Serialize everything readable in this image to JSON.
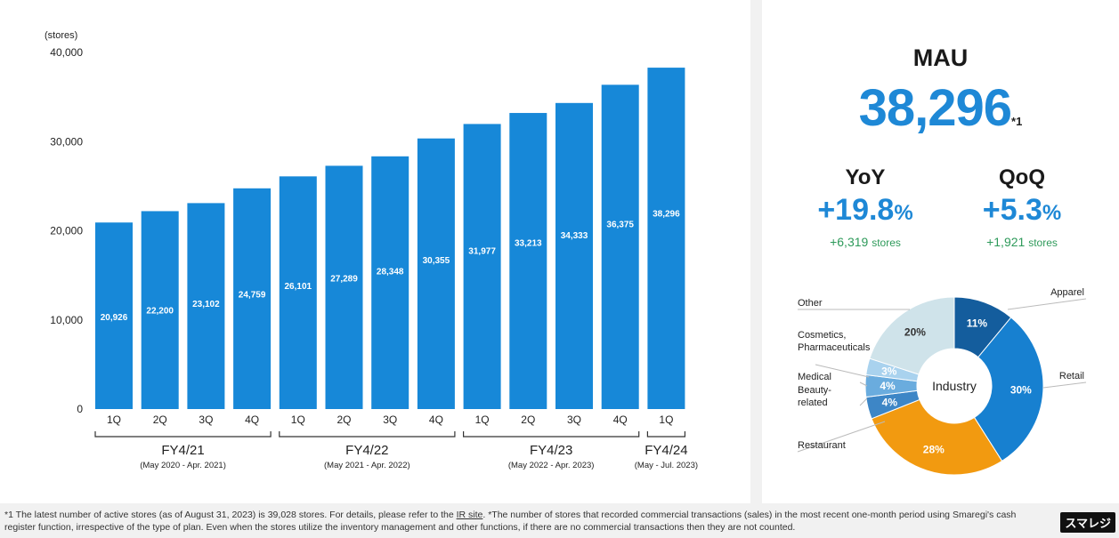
{
  "chart_data": [
    {
      "type": "bar",
      "unit_label": "(stores)",
      "categories": [
        "1Q",
        "2Q",
        "3Q",
        "4Q",
        "1Q",
        "2Q",
        "3Q",
        "4Q",
        "1Q",
        "2Q",
        "3Q",
        "4Q",
        "1Q"
      ],
      "values": [
        20926,
        22200,
        23102,
        24759,
        26101,
        27289,
        28348,
        30355,
        31977,
        33213,
        34333,
        36375,
        38296
      ],
      "value_labels": [
        "20,926",
        "22,200",
        "23,102",
        "24,759",
        "26,101",
        "27,289",
        "28,348",
        "30,355",
        "31,977",
        "33,213",
        "34,333",
        "36,375",
        "38,296"
      ],
      "yticks": [
        "0",
        "10,000",
        "20,000",
        "30,000",
        "40,000"
      ],
      "ylim": [
        0,
        40000
      ],
      "groups": [
        {
          "label": "FY4/21",
          "sub": "(May 2020 - Apr. 2021)"
        },
        {
          "label": "FY4/22",
          "sub": "(May 2021 - Apr. 2022)"
        },
        {
          "label": "FY4/23",
          "sub": "(May 2022 - Apr. 2023)"
        },
        {
          "label": "FY4/24",
          "sub": "(May - Jul. 2023)"
        }
      ],
      "bar_color": "#1788d8",
      "grid": false
    },
    {
      "type": "pie",
      "center_label": "Industry",
      "slices": [
        {
          "label": "Apparel",
          "value": 11,
          "pct_text": "11%",
          "color": "#145d9d"
        },
        {
          "label": "Retail",
          "value": 30,
          "pct_text": "30%",
          "color": "#1780d0"
        },
        {
          "label": "Restaurant",
          "value": 28,
          "pct_text": "28%",
          "color": "#f29a10"
        },
        {
          "label": "Beauty-related",
          "value": 4,
          "pct_text": "4%",
          "color": "#3d86c6"
        },
        {
          "label": "Medical",
          "value": 4,
          "pct_text": "4%",
          "color": "#6aacde"
        },
        {
          "label": "Cosmetics, Pharmaceuticals",
          "value": 3,
          "pct_text": "3%",
          "color": "#a9d2ee"
        },
        {
          "label": "Other",
          "value": 20,
          "pct_text": "20%",
          "color": "#cfe3ea"
        }
      ]
    }
  ],
  "mau": {
    "title": "MAU",
    "value": "38,296",
    "note": "*1"
  },
  "yoy": {
    "label": "YoY",
    "value": "+19.8",
    "pct": "%",
    "sub_value": "+6,319",
    "sub_unit": "stores"
  },
  "qoq": {
    "label": "QoQ",
    "value": "+5.3",
    "pct": "%",
    "sub_value": "+1,921",
    "sub_unit": "stores"
  },
  "footnote": {
    "part1": "*1 The latest number of active stores (as of August 31, 2023) is 39,028 stores. For details, please refer to the ",
    "link": "IR site",
    "part2": ". *The number of stores that recorded commercial transactions (sales) in the most recent one-month period using Smaregi's cash register function, irrespective of the type of plan. Even when the stores utilize the inventory management and other functions, if there are no commercial transactions then they are not counted."
  },
  "logo": "スマレジ"
}
